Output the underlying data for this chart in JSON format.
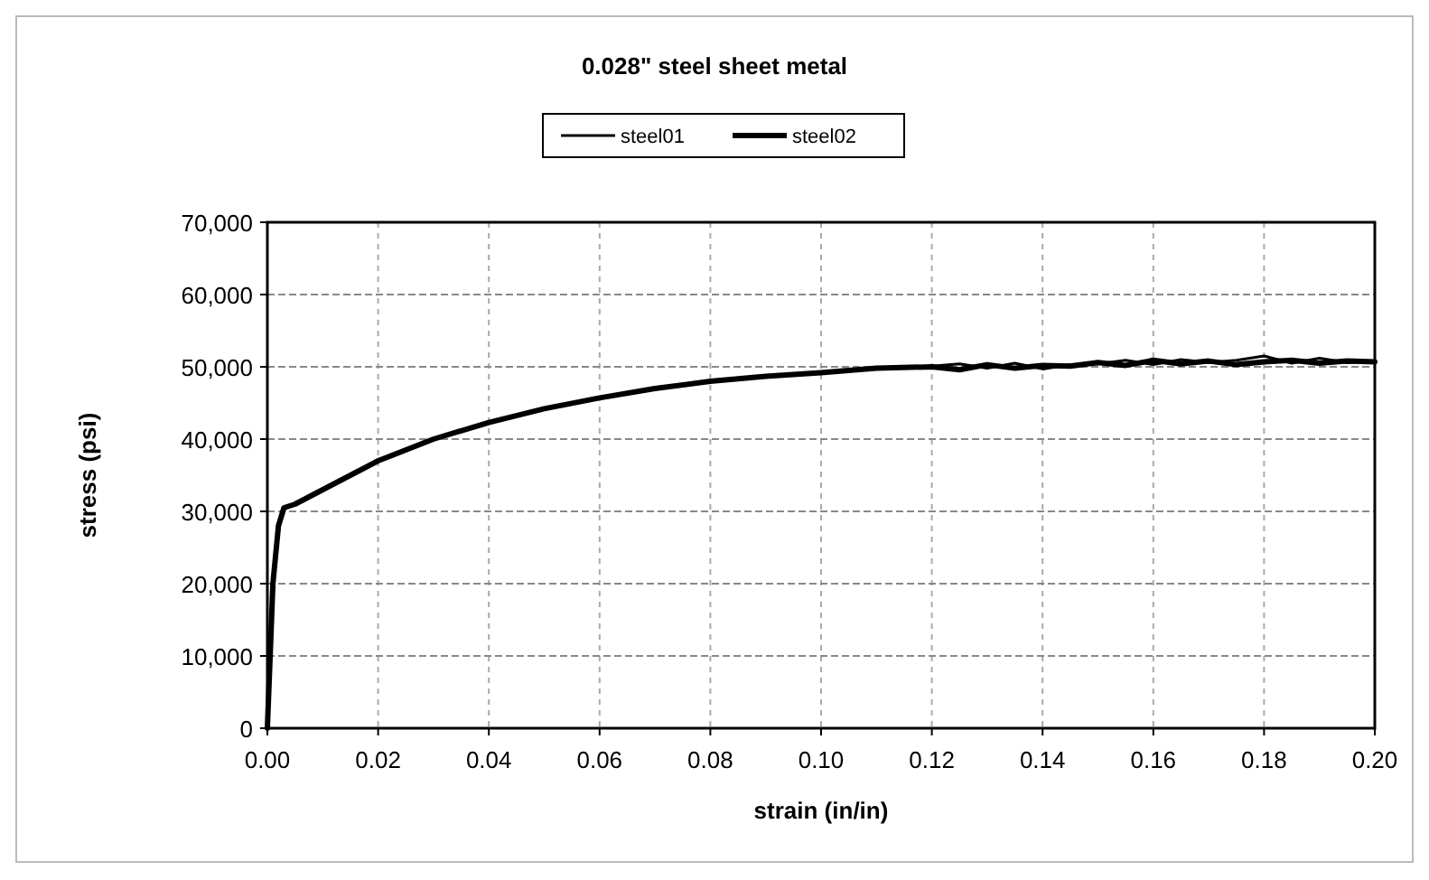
{
  "chart_data": {
    "type": "line",
    "title": "0.028\" steel sheet metal",
    "xlabel": "strain (in/in)",
    "ylabel": "stress (psi)",
    "xlim": [
      0,
      0.2
    ],
    "ylim": [
      0,
      70000
    ],
    "xticks": [
      {
        "value": 0,
        "label": "0.00"
      },
      {
        "value": 0.02,
        "label": "0.02"
      },
      {
        "value": 0.04,
        "label": "0.04"
      },
      {
        "value": 0.06,
        "label": "0.06"
      },
      {
        "value": 0.08,
        "label": "0.08"
      },
      {
        "value": 0.1,
        "label": "0.10"
      },
      {
        "value": 0.12,
        "label": "0.12"
      },
      {
        "value": 0.14,
        "label": "0.14"
      },
      {
        "value": 0.16,
        "label": "0.16"
      },
      {
        "value": 0.18,
        "label": "0.18"
      },
      {
        "value": 0.2,
        "label": "0.20"
      }
    ],
    "yticks": [
      0,
      {
        "value": 10000,
        "label": "10,000"
      },
      {
        "value": 20000,
        "label": "20,000"
      },
      {
        "value": 30000,
        "label": "30,000"
      },
      {
        "value": 40000,
        "label": "40,000"
      },
      {
        "value": 50000,
        "label": "50,000"
      },
      {
        "value": 60000,
        "label": "60,000"
      },
      {
        "value": 70000,
        "label": "70,000"
      }
    ],
    "grid": true,
    "legend": "top",
    "marker": "none",
    "line_style": "solid",
    "series": [
      {
        "name": "steel01",
        "color": "#000000",
        "x": [
          0,
          0.001,
          0.002,
          0.003,
          0.005,
          0.01,
          0.02,
          0.03,
          0.04,
          0.05,
          0.06,
          0.07,
          0.08,
          0.09,
          0.1,
          0.11,
          0.12,
          0.125,
          0.13,
          0.135,
          0.14,
          0.145,
          0.15,
          0.155,
          0.16,
          0.165,
          0.17,
          0.175,
          0.18,
          0.185,
          0.19,
          0.195,
          0.2
        ],
        "values": [
          0,
          20000,
          28000,
          30500,
          31000,
          33000,
          37000,
          40000,
          42300,
          44200,
          45700,
          47000,
          48000,
          48700,
          49200,
          49800,
          50100,
          50400,
          49800,
          50500,
          49700,
          50300,
          50400,
          50900,
          50300,
          51000,
          50600,
          50900,
          51500,
          50500,
          51200,
          50600,
          50700
        ]
      },
      {
        "name": "steel02",
        "color": "#000000",
        "x": [
          0,
          0.001,
          0.002,
          0.003,
          0.005,
          0.01,
          0.02,
          0.03,
          0.04,
          0.05,
          0.06,
          0.07,
          0.08,
          0.09,
          0.1,
          0.11,
          0.12,
          0.125,
          0.13,
          0.135,
          0.14,
          0.145,
          0.15,
          0.155,
          0.16,
          0.165,
          0.17,
          0.175,
          0.18,
          0.185,
          0.19,
          0.195,
          0.2
        ],
        "values": [
          0,
          20000,
          28000,
          30500,
          31000,
          33000,
          37000,
          40000,
          42300,
          44200,
          45700,
          47000,
          48000,
          48700,
          49200,
          49800,
          50000,
          49600,
          50300,
          49800,
          50200,
          50100,
          50600,
          50200,
          50900,
          50400,
          50800,
          50300,
          50700,
          50900,
          50500,
          50800,
          50700
        ]
      }
    ]
  }
}
